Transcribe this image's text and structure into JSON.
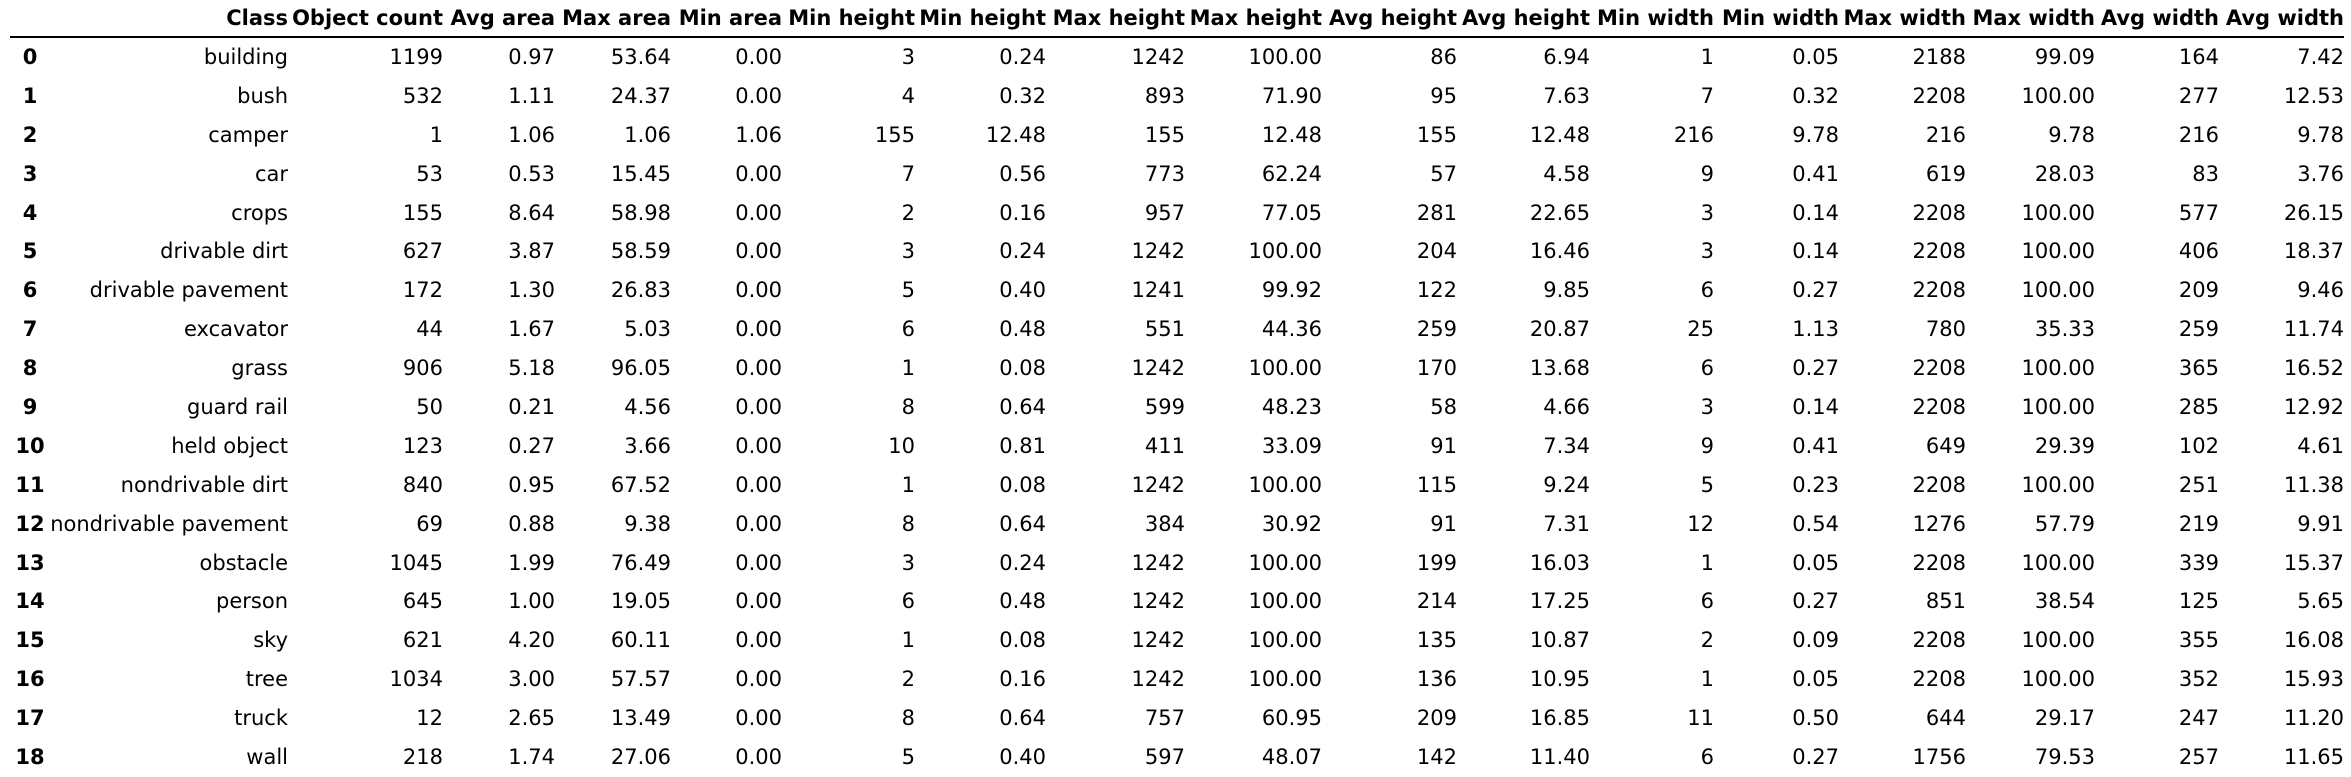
{
  "table": {
    "index_header": "",
    "columns": [
      "Class",
      "Object count",
      "Avg area",
      "Max area",
      "Min area",
      "Min height",
      "Min height",
      "Max height",
      "Max height",
      "Avg height",
      "Avg height",
      "Min width",
      "Min width",
      "Max width",
      "Max width",
      "Avg width",
      "Avg width"
    ],
    "rows": [
      {
        "index": "0",
        "cells": [
          "building",
          "1199",
          "0.97",
          "53.64",
          "0.00",
          "3",
          "0.24",
          "1242",
          "100.00",
          "86",
          "6.94",
          "1",
          "0.05",
          "2188",
          "99.09",
          "164",
          "7.42"
        ]
      },
      {
        "index": "1",
        "cells": [
          "bush",
          "532",
          "1.11",
          "24.37",
          "0.00",
          "4",
          "0.32",
          "893",
          "71.90",
          "95",
          "7.63",
          "7",
          "0.32",
          "2208",
          "100.00",
          "277",
          "12.53"
        ]
      },
      {
        "index": "2",
        "cells": [
          "camper",
          "1",
          "1.06",
          "1.06",
          "1.06",
          "155",
          "12.48",
          "155",
          "12.48",
          "155",
          "12.48",
          "216",
          "9.78",
          "216",
          "9.78",
          "216",
          "9.78"
        ]
      },
      {
        "index": "3",
        "cells": [
          "car",
          "53",
          "0.53",
          "15.45",
          "0.00",
          "7",
          "0.56",
          "773",
          "62.24",
          "57",
          "4.58",
          "9",
          "0.41",
          "619",
          "28.03",
          "83",
          "3.76"
        ]
      },
      {
        "index": "4",
        "cells": [
          "crops",
          "155",
          "8.64",
          "58.98",
          "0.00",
          "2",
          "0.16",
          "957",
          "77.05",
          "281",
          "22.65",
          "3",
          "0.14",
          "2208",
          "100.00",
          "577",
          "26.15"
        ]
      },
      {
        "index": "5",
        "cells": [
          "drivable dirt",
          "627",
          "3.87",
          "58.59",
          "0.00",
          "3",
          "0.24",
          "1242",
          "100.00",
          "204",
          "16.46",
          "3",
          "0.14",
          "2208",
          "100.00",
          "406",
          "18.37"
        ]
      },
      {
        "index": "6",
        "cells": [
          "drivable pavement",
          "172",
          "1.30",
          "26.83",
          "0.00",
          "5",
          "0.40",
          "1241",
          "99.92",
          "122",
          "9.85",
          "6",
          "0.27",
          "2208",
          "100.00",
          "209",
          "9.46"
        ]
      },
      {
        "index": "7",
        "cells": [
          "excavator",
          "44",
          "1.67",
          "5.03",
          "0.00",
          "6",
          "0.48",
          "551",
          "44.36",
          "259",
          "20.87",
          "25",
          "1.13",
          "780",
          "35.33",
          "259",
          "11.74"
        ]
      },
      {
        "index": "8",
        "cells": [
          "grass",
          "906",
          "5.18",
          "96.05",
          "0.00",
          "1",
          "0.08",
          "1242",
          "100.00",
          "170",
          "13.68",
          "6",
          "0.27",
          "2208",
          "100.00",
          "365",
          "16.52"
        ]
      },
      {
        "index": "9",
        "cells": [
          "guard rail",
          "50",
          "0.21",
          "4.56",
          "0.00",
          "8",
          "0.64",
          "599",
          "48.23",
          "58",
          "4.66",
          "3",
          "0.14",
          "2208",
          "100.00",
          "285",
          "12.92"
        ]
      },
      {
        "index": "10",
        "cells": [
          "held object",
          "123",
          "0.27",
          "3.66",
          "0.00",
          "10",
          "0.81",
          "411",
          "33.09",
          "91",
          "7.34",
          "9",
          "0.41",
          "649",
          "29.39",
          "102",
          "4.61"
        ]
      },
      {
        "index": "11",
        "cells": [
          "nondrivable dirt",
          "840",
          "0.95",
          "67.52",
          "0.00",
          "1",
          "0.08",
          "1242",
          "100.00",
          "115",
          "9.24",
          "5",
          "0.23",
          "2208",
          "100.00",
          "251",
          "11.38"
        ]
      },
      {
        "index": "12",
        "cells": [
          "nondrivable pavement",
          "69",
          "0.88",
          "9.38",
          "0.00",
          "8",
          "0.64",
          "384",
          "30.92",
          "91",
          "7.31",
          "12",
          "0.54",
          "1276",
          "57.79",
          "219",
          "9.91"
        ]
      },
      {
        "index": "13",
        "cells": [
          "obstacle",
          "1045",
          "1.99",
          "76.49",
          "0.00",
          "3",
          "0.24",
          "1242",
          "100.00",
          "199",
          "16.03",
          "1",
          "0.05",
          "2208",
          "100.00",
          "339",
          "15.37"
        ]
      },
      {
        "index": "14",
        "cells": [
          "person",
          "645",
          "1.00",
          "19.05",
          "0.00",
          "6",
          "0.48",
          "1242",
          "100.00",
          "214",
          "17.25",
          "6",
          "0.27",
          "851",
          "38.54",
          "125",
          "5.65"
        ]
      },
      {
        "index": "15",
        "cells": [
          "sky",
          "621",
          "4.20",
          "60.11",
          "0.00",
          "1",
          "0.08",
          "1242",
          "100.00",
          "135",
          "10.87",
          "2",
          "0.09",
          "2208",
          "100.00",
          "355",
          "16.08"
        ]
      },
      {
        "index": "16",
        "cells": [
          "tree",
          "1034",
          "3.00",
          "57.57",
          "0.00",
          "2",
          "0.16",
          "1242",
          "100.00",
          "136",
          "10.95",
          "1",
          "0.05",
          "2208",
          "100.00",
          "352",
          "15.93"
        ]
      },
      {
        "index": "17",
        "cells": [
          "truck",
          "12",
          "2.65",
          "13.49",
          "0.00",
          "8",
          "0.64",
          "757",
          "60.95",
          "209",
          "16.85",
          "11",
          "0.50",
          "644",
          "29.17",
          "247",
          "11.20"
        ]
      },
      {
        "index": "18",
        "cells": [
          "wall",
          "218",
          "1.74",
          "27.06",
          "0.00",
          "5",
          "0.40",
          "597",
          "48.07",
          "142",
          "11.40",
          "6",
          "0.27",
          "1756",
          "79.53",
          "257",
          "11.65"
        ]
      }
    ]
  }
}
